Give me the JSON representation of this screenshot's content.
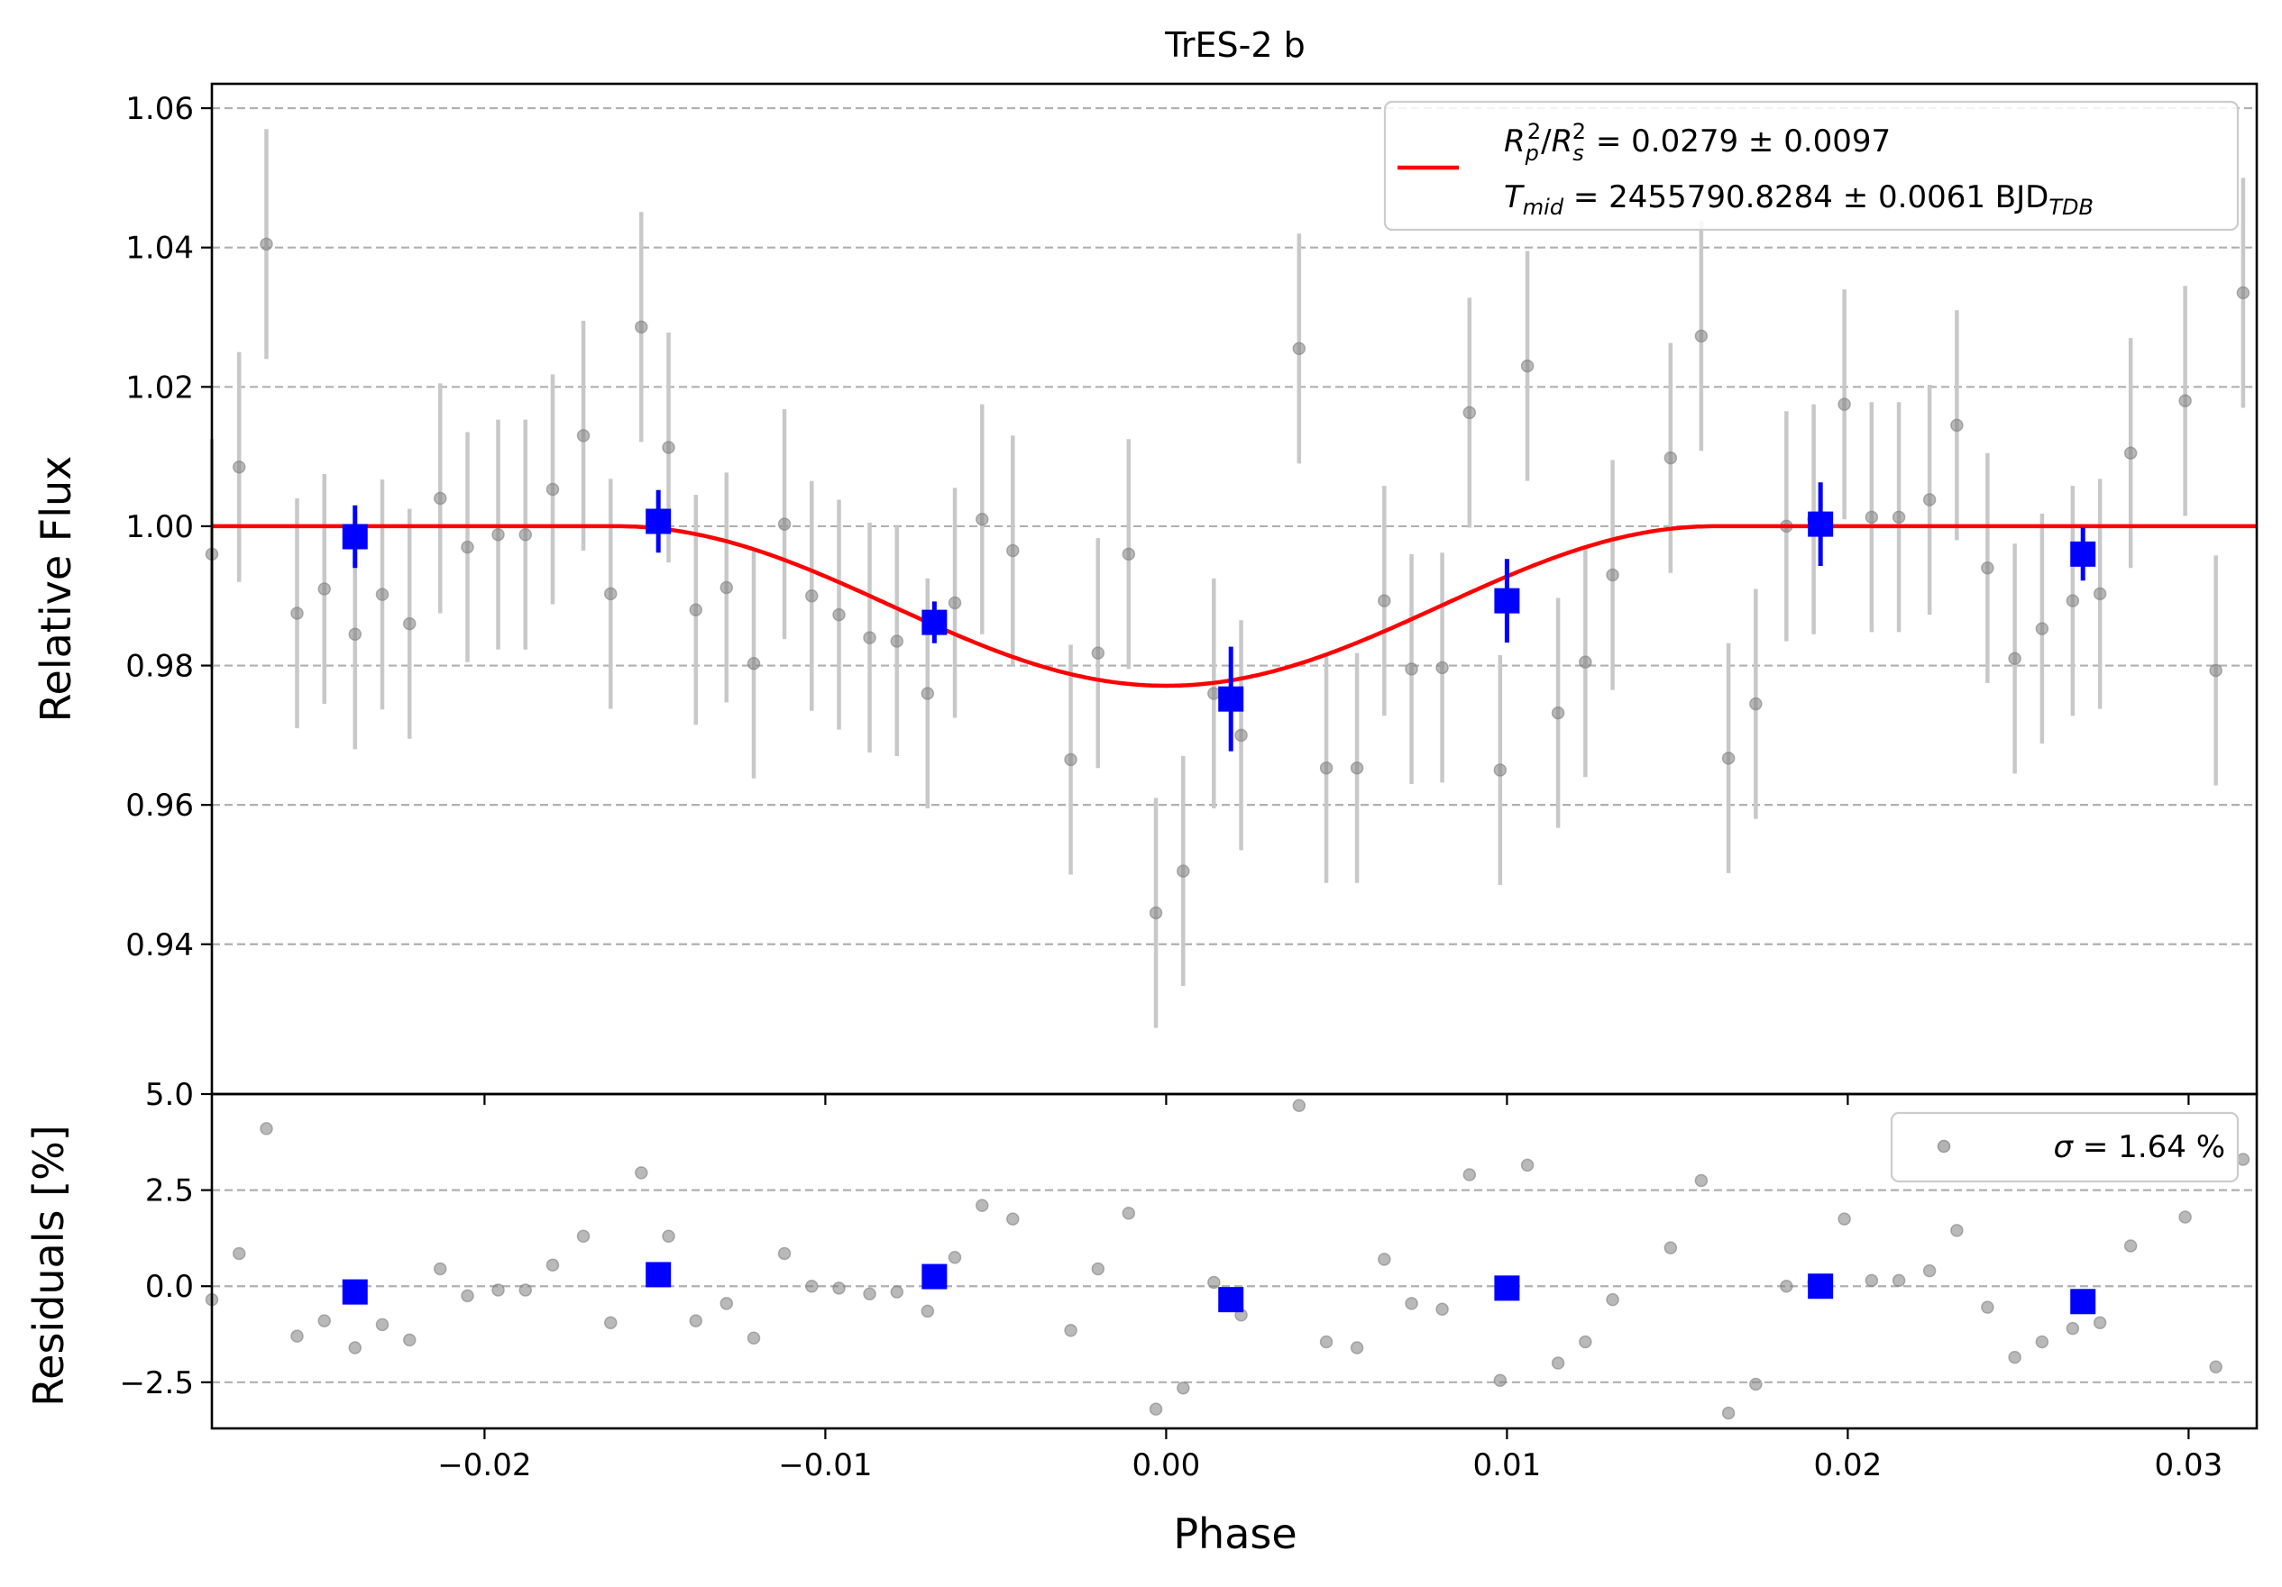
{
  "chart_data": [
    {
      "type": "scatter",
      "title": "TrES-2 b",
      "xlabel": "",
      "ylabel": "Relative Flux",
      "xlim": [
        -0.028,
        0.032
      ],
      "ylim": [
        0.9185,
        1.0635
      ],
      "yticks": [
        0.94,
        0.96,
        0.98,
        1.0,
        1.02,
        1.04,
        1.06
      ],
      "ytick_labels": [
        "0.94",
        "0.96",
        "0.98",
        "1.00",
        "1.02",
        "1.04",
        "1.06"
      ],
      "grid": "y",
      "legend_position": "top-right",
      "legend": {
        "line1": {
          "r": "R",
          "rsub": "p",
          "rsup": "2",
          "slash": "/",
          "s": "R",
          "ssub": "s",
          "ssup": "2",
          "value": " = 0.0279 ± 0.0097"
        },
        "line2": {
          "t": "T",
          "tsub": "mid",
          "value": " = 2455790.8284 ± 0.0061 BJD",
          "vsub": "TDB"
        }
      },
      "colors": {
        "raw": "#808080",
        "raw_err": "#c8c8c8",
        "binned": "#0000ff",
        "model": "#ff0000"
      },
      "model": {
        "type": "transit",
        "depth": 0.0229,
        "t1": -0.0161,
        "t2": 0.0,
        "t4": 0.0161,
        "baseline": 1.0
      },
      "series": [
        {
          "role": "raw",
          "x": [
            -0.028,
            -0.0272,
            -0.0264,
            -0.0255,
            -0.0247,
            -0.0238,
            -0.023,
            -0.0222,
            -0.0213,
            -0.0205,
            -0.0196,
            -0.0188,
            -0.018,
            -0.0171,
            -0.0163,
            -0.0154,
            -0.0146,
            -0.0138,
            -0.0129,
            -0.0121,
            -0.0112,
            -0.0104,
            -0.0096,
            -0.0087,
            -0.0079,
            -0.007,
            -0.0062,
            -0.0054,
            -0.0045,
            -0.0028,
            -0.002,
            -0.0011,
            -0.0003,
            0.0005,
            0.0014,
            0.0022,
            0.0039,
            0.0047,
            0.0056,
            0.0064,
            0.0072,
            0.0081,
            0.0089,
            0.0098,
            0.0106,
            0.0115,
            0.0123,
            0.0131,
            0.0148,
            0.0157,
            0.0165,
            0.0173,
            0.0182,
            0.019,
            0.0199,
            0.0207,
            0.0215,
            0.0224,
            0.0232,
            0.0241,
            0.0249,
            0.0257,
            0.0266,
            0.0274,
            0.0283,
            0.0299,
            0.0308,
            0.0316
          ],
          "y": [
            0.996,
            1.0085,
            1.0405,
            0.9875,
            0.991,
            0.9845,
            0.9902,
            0.986,
            1.004,
            0.997,
            0.9988,
            0.9988,
            1.0053,
            1.013,
            0.9903,
            1.0286,
            1.0113,
            0.988,
            0.9912,
            0.9803,
            1.0003,
            0.99,
            0.9873,
            0.984,
            0.9835,
            0.976,
            0.989,
            1.001,
            0.9965,
            0.9665,
            0.9818,
            0.996,
            0.9445,
            0.9505,
            0.976,
            0.97,
            1.0255,
            0.9653,
            0.9653,
            0.9893,
            0.9795,
            0.9797,
            1.0163,
            0.965,
            1.023,
            0.9732,
            0.9805,
            0.993,
            1.0098,
            1.0273,
            0.9667,
            0.9745,
            1.0,
            1.001,
            1.0175,
            1.0013,
            1.0013,
            1.0038,
            1.0145,
            0.994,
            0.981,
            0.9853,
            0.9893,
            0.9903,
            1.0105,
            1.018,
            0.9793,
            1.0335
          ],
          "yerr": 0.0165,
          "residuals": [
            -0.35,
            0.85,
            4.1,
            -1.3,
            -0.9,
            -1.6,
            -1.0,
            -1.4,
            0.45,
            -0.25,
            -0.1,
            -0.1,
            0.55,
            1.3,
            -0.95,
            2.95,
            1.3,
            -0.9,
            -0.45,
            -1.35,
            0.85,
            0.0,
            -0.05,
            -0.2,
            -0.15,
            -0.65,
            0.75,
            2.1,
            1.75,
            -1.15,
            0.45,
            1.9,
            -3.2,
            -2.65,
            0.1,
            -0.75,
            4.7,
            -1.45,
            -1.6,
            0.7,
            -0.45,
            -0.6,
            2.9,
            -2.45,
            3.15,
            -2.0,
            -1.45,
            -0.35,
            1.0,
            2.75,
            -3.3,
            -2.55,
            0.0,
            0.1,
            1.75,
            0.15,
            0.15,
            0.4,
            1.45,
            -0.55,
            -1.85,
            -1.45,
            -1.1,
            -0.95,
            1.05,
            1.8,
            -2.1,
            3.3
          ]
        },
        {
          "role": "binned",
          "x": [
            -0.0238,
            -0.0149,
            -0.0068,
            0.0019,
            0.01,
            0.0192,
            0.0269
          ],
          "y": [
            0.9985,
            1.0007,
            0.9862,
            0.9752,
            0.9893,
            1.0003,
            0.996
          ],
          "yerr": [
            0.0045,
            0.0045,
            0.003,
            0.0075,
            0.006,
            0.006,
            0.0038
          ],
          "residuals": [
            -0.15,
            0.3,
            0.25,
            -0.35,
            -0.05,
            0.0,
            -0.4
          ]
        }
      ]
    },
    {
      "type": "scatter",
      "title": "",
      "xlabel": "Phase",
      "ylabel": "Residuals [%]",
      "xlim": [
        -0.028,
        0.032
      ],
      "ylim": [
        -3.7,
        5.0
      ],
      "xticks": [
        -0.02,
        -0.01,
        0.0,
        0.01,
        0.02,
        0.03
      ],
      "xtick_labels": [
        "−0.02",
        "−0.01",
        "0.00",
        "0.01",
        "0.02",
        "0.03"
      ],
      "yticks": [
        -2.5,
        0.0,
        2.5,
        5.0
      ],
      "ytick_labels": [
        "−2.5",
        "0.0",
        "2.5",
        "5.0"
      ],
      "grid": "y",
      "legend_position": "top-right",
      "legend": {
        "sigma": "σ",
        "value": " = 1.64 %"
      }
    }
  ]
}
